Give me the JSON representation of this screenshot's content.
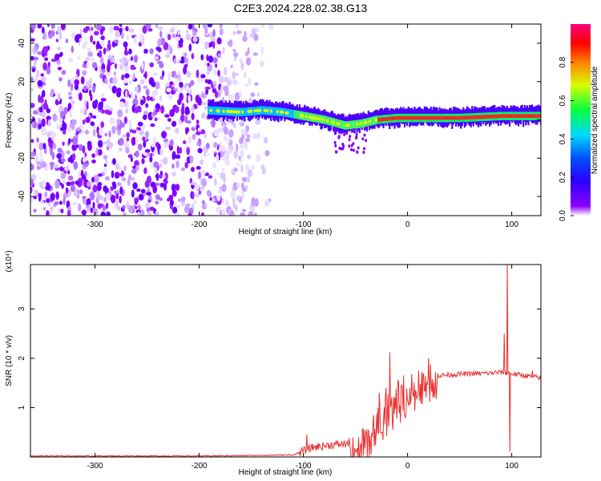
{
  "title": "C2E3.2024.228.02.38.G13",
  "chart_data": [
    {
      "type": "heatmap",
      "xlabel": "Height of straight line (km)",
      "ylabel": "Frequency (Hz)",
      "xlim": [
        -362,
        128
      ],
      "ylim": [
        -50,
        50
      ],
      "xticks": [
        -300,
        -200,
        -100,
        0,
        100
      ],
      "yticks": [
        -40,
        -20,
        0,
        20,
        40
      ],
      "noise_region_x": [
        -362,
        -130
      ],
      "signal_x_start": -192,
      "ridge": [
        {
          "x": -192,
          "y": 5
        },
        {
          "x": -160,
          "y": 4
        },
        {
          "x": -140,
          "y": 5
        },
        {
          "x": -120,
          "y": 4
        },
        {
          "x": -100,
          "y": 2
        },
        {
          "x": -80,
          "y": 0
        },
        {
          "x": -60,
          "y": -3
        },
        {
          "x": -45,
          "y": -2
        },
        {
          "x": -30,
          "y": 0
        },
        {
          "x": -10,
          "y": 1
        },
        {
          "x": 0,
          "y": 1
        },
        {
          "x": 50,
          "y": 1
        },
        {
          "x": 90,
          "y": 2
        },
        {
          "x": 128,
          "y": 2
        }
      ],
      "colorbar": {
        "label": "Normalized spectral amplitude",
        "range": [
          0,
          1
        ],
        "ticks": [
          "0.0",
          "0.2",
          "0.4",
          "0.6",
          "0.8"
        ]
      },
      "grid": false
    },
    {
      "type": "line",
      "xlabel": "Height of straight line (km)",
      "ylabel": "SNR (10 * v/v)",
      "yscale_label": "(x10⁴)",
      "xlim": [
        -362,
        128
      ],
      "ylim": [
        0,
        3.9
      ],
      "xticks": [
        -300,
        -200,
        -100,
        0,
        100
      ],
      "yticks": [
        1,
        2,
        3
      ],
      "series": [
        {
          "color": "#e8312f",
          "points": [
            {
              "x": -362,
              "y": 0.02
            },
            {
              "x": -300,
              "y": 0.02
            },
            {
              "x": -200,
              "y": 0.02
            },
            {
              "x": -150,
              "y": 0.03
            },
            {
              "x": -110,
              "y": 0.04
            },
            {
              "x": -100,
              "y": 0.12
            },
            {
              "x": -90,
              "y": 0.2
            },
            {
              "x": -70,
              "y": 0.25
            },
            {
              "x": -50,
              "y": 0.28
            },
            {
              "x": -40,
              "y": 0.4
            },
            {
              "x": -30,
              "y": 0.75
            },
            {
              "x": -20,
              "y": 1.0
            },
            {
              "x": -10,
              "y": 1.15
            },
            {
              "x": 0,
              "y": 1.3
            },
            {
              "x": 10,
              "y": 1.45
            },
            {
              "x": 20,
              "y": 1.58
            },
            {
              "x": 30,
              "y": 1.65
            },
            {
              "x": 50,
              "y": 1.68
            },
            {
              "x": 80,
              "y": 1.7
            },
            {
              "x": 90,
              "y": 1.72
            },
            {
              "x": 128,
              "y": 1.6
            }
          ],
          "spikes": [
            {
              "x": -97,
              "y": 0.45
            },
            {
              "x": -40,
              "y": 0.55
            },
            {
              "x": -27,
              "y": 1.3
            },
            {
              "x": -17,
              "y": 2.12
            },
            {
              "x": -12,
              "y": 1.2
            },
            {
              "x": 93,
              "y": 2.5
            },
            {
              "x": 96,
              "y": 3.9
            },
            {
              "x": 98,
              "y": 0.1
            },
            {
              "x": 120,
              "y": 1.75
            }
          ]
        }
      ],
      "grid": false
    }
  ]
}
